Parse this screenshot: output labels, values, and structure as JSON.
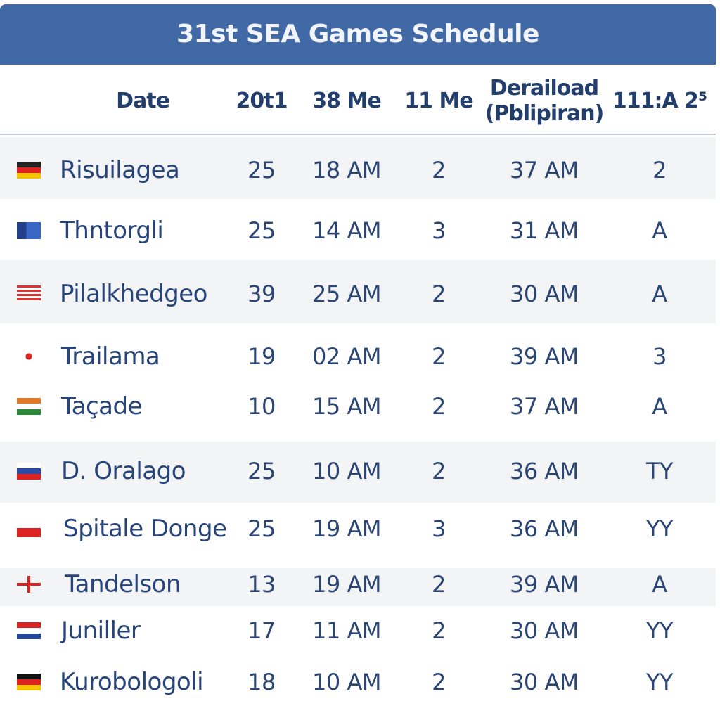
{
  "header": {
    "title": "31st SEA Games Schedule"
  },
  "table": {
    "columns": [
      "Date",
      "20t1",
      "38 Me",
      "11 Me",
      "Deraiload (Pblipiran)",
      "111:A 2⁵"
    ],
    "rows": [
      [
        "Risuilagea",
        "25",
        "18 AM",
        "2",
        "37 AM",
        "2"
      ],
      [
        "Thntorgli",
        "25",
        "14 AM",
        "3",
        "31 AM",
        "A"
      ],
      [
        "Pilalkhedgeo",
        "39",
        "25 AM",
        "2",
        "30 AM",
        "A"
      ],
      [
        "Trailama",
        "19",
        "02 AM",
        "2",
        "39 AM",
        "3"
      ],
      [
        "Taçade",
        "10",
        "15 AM",
        "2",
        "37 AM",
        "A"
      ],
      [
        "D. Oralago",
        "25",
        "10 AM",
        "2",
        "36 AM",
        "TY"
      ],
      [
        "Spitale Donge",
        "25",
        "19 AM",
        "3",
        "36 AM",
        "YY"
      ],
      [
        "Tandelson",
        "13",
        "19 AM",
        "2",
        "39 AM",
        "A"
      ],
      [
        "Juniller",
        "17",
        "11 AM",
        "2",
        "30 AM",
        "YY"
      ],
      [
        "Kurobologoli",
        "18",
        "10 AM",
        "2",
        "30 AM",
        "YY"
      ]
    ]
  }
}
